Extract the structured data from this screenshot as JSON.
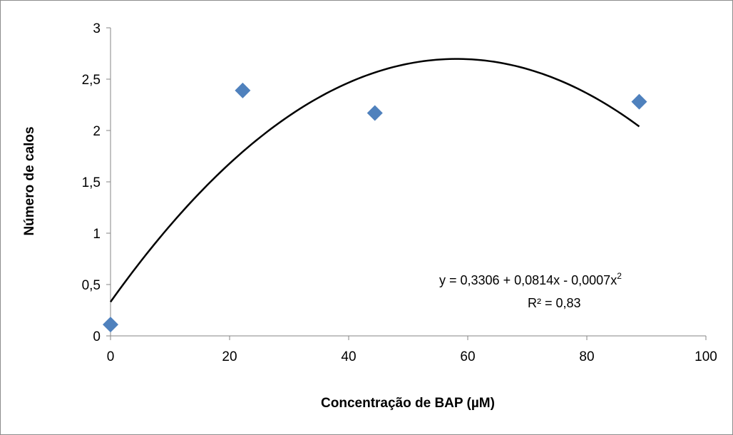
{
  "chart_data": {
    "type": "scatter",
    "xlabel": "Concentração de BAP (µM)",
    "ylabel": "Número de calos",
    "xlim": [
      0,
      100
    ],
    "ylim": [
      0,
      3
    ],
    "x_ticks": [
      "0",
      "20",
      "40",
      "60",
      "80",
      "100"
    ],
    "y_ticks": [
      "0",
      "0,5",
      "1",
      "1,5",
      "2",
      "2,5",
      "3"
    ],
    "points": [
      {
        "x": 0,
        "y": 0.11
      },
      {
        "x": 22.2,
        "y": 2.39
      },
      {
        "x": 44.4,
        "y": 2.17
      },
      {
        "x": 88.8,
        "y": 2.28
      }
    ],
    "marker_color": "#4f81bd",
    "trendline": {
      "type": "polynomial",
      "coefficients": {
        "a": 0.3306,
        "b": 0.0814,
        "c": -0.0007
      },
      "x_range": [
        0,
        88.8
      ],
      "color": "#000000"
    },
    "equation_label": "y =  0,3306 + 0,0814x - 0,0007x",
    "equation_superscript": "2",
    "r2_label": "R² = 0,83",
    "grid": false,
    "legend": "none"
  }
}
